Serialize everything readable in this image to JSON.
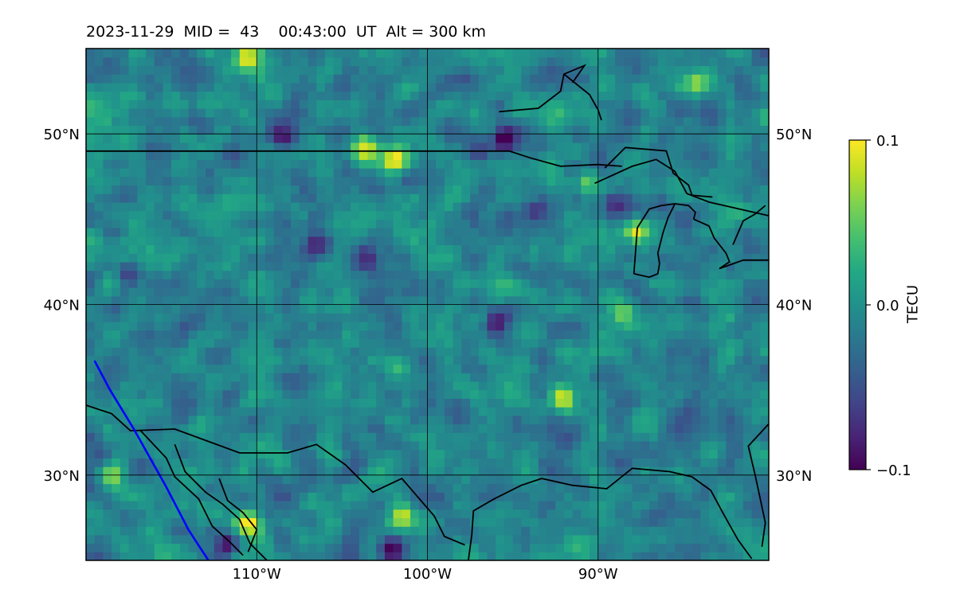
{
  "title": "2023-11-29  MID =  43    00:43:00  UT  Alt = 300 km",
  "chart_data": {
    "type": "heatmap",
    "title": "2023-11-29  MID =  43    00:43:00  UT  Alt = 300 km",
    "xlabel": "",
    "ylabel": "",
    "xlim": [
      -120,
      -80
    ],
    "ylim": [
      25,
      55
    ],
    "x_ticks": [
      -110,
      -100,
      -90
    ],
    "x_tick_labels": [
      "110°W",
      "100°W",
      "90°W"
    ],
    "y_ticks": [
      30,
      40,
      50
    ],
    "y_tick_labels": [
      "30°N",
      "40°N",
      "50°N"
    ],
    "colorbar": {
      "label": "TECU",
      "colormap": "viridis",
      "vmin": -0.1,
      "vmax": 0.1,
      "ticks": [
        0.1,
        0.0,
        -0.1
      ],
      "tick_labels": [
        "0.1",
        "0.0",
        "−0.1"
      ]
    },
    "grid": true,
    "cell_deg": 0.5,
    "field_mean": -0.01,
    "hotspots": [
      {
        "lon": -110.5,
        "lat": 27.2,
        "value": 0.1
      },
      {
        "lon": -103.5,
        "lat": 49.2,
        "value": 0.1
      },
      {
        "lon": -102.0,
        "lat": 48.5,
        "value": 0.1
      },
      {
        "lon": -87.8,
        "lat": 44.3,
        "value": 0.09
      },
      {
        "lon": -84.2,
        "lat": 53.0,
        "value": 0.08
      },
      {
        "lon": -92.0,
        "lat": 34.5,
        "value": 0.08
      },
      {
        "lon": -101.5,
        "lat": 27.5,
        "value": 0.07
      },
      {
        "lon": -101.8,
        "lat": 36.5,
        "value": 0.06
      },
      {
        "lon": -110.5,
        "lat": 54.5,
        "value": 0.08
      },
      {
        "lon": -118.5,
        "lat": 30.0,
        "value": 0.07
      },
      {
        "lon": -88.5,
        "lat": 39.5,
        "value": 0.05
      },
      {
        "lon": -90.5,
        "lat": 47.2,
        "value": 0.06
      }
    ],
    "coldspots": [
      {
        "lon": -111.8,
        "lat": 26.0,
        "value": -0.1
      },
      {
        "lon": -95.5,
        "lat": 49.7,
        "value": -0.1
      },
      {
        "lon": -117.5,
        "lat": 41.8,
        "value": -0.09
      },
      {
        "lon": -96.0,
        "lat": 39.0,
        "value": -0.08
      },
      {
        "lon": -102.0,
        "lat": 25.8,
        "value": -0.08
      },
      {
        "lon": -108.5,
        "lat": 50.0,
        "value": -0.08
      },
      {
        "lon": -89.0,
        "lat": 45.8,
        "value": -0.07
      },
      {
        "lon": -93.8,
        "lat": 45.5,
        "value": -0.07
      },
      {
        "lon": -106.5,
        "lat": 43.5,
        "value": -0.07
      },
      {
        "lon": -103.5,
        "lat": 42.8,
        "value": -0.06
      },
      {
        "lon": -97.0,
        "lat": 49.0,
        "value": -0.07
      }
    ],
    "boundaries": {
      "black": [
        [
          [
            -120,
            48.99
          ],
          [
            -95.2,
            48.99
          ],
          [
            -94.0,
            48.6
          ],
          [
            -92.2,
            48.1
          ],
          [
            -90.0,
            48.2
          ],
          [
            -88.6,
            48.1
          ]
        ],
        [
          [
            -90.2,
            47.1
          ],
          [
            -88.0,
            48.1
          ],
          [
            -86.6,
            48.5
          ],
          [
            -85.5,
            47.8
          ],
          [
            -84.8,
            46.5
          ],
          [
            -83.5,
            46.0
          ],
          [
            -80,
            45.2
          ]
        ],
        [
          [
            -87.9,
            41.8
          ],
          [
            -87.7,
            44.5
          ],
          [
            -87.0,
            45.6
          ],
          [
            -86.3,
            45.8
          ],
          [
            -85.5,
            45.9
          ],
          [
            -84.7,
            45.8
          ],
          [
            -84.3,
            45.4
          ],
          [
            -84.4,
            45.0
          ]
        ],
        [
          [
            -85.5,
            45.9
          ],
          [
            -85.9,
            45.1
          ],
          [
            -86.2,
            44.2
          ],
          [
            -86.5,
            43.0
          ],
          [
            -86.4,
            42.4
          ],
          [
            -86.5,
            41.8
          ],
          [
            -87.0,
            41.6
          ],
          [
            -87.9,
            41.8
          ]
        ],
        [
          [
            -84.4,
            45.0
          ],
          [
            -83.5,
            44.6
          ],
          [
            -83.2,
            43.9
          ],
          [
            -82.5,
            43.0
          ],
          [
            -82.3,
            42.5
          ],
          [
            -82.9,
            42.1
          ],
          [
            -81.5,
            42.6
          ],
          [
            -80,
            42.6
          ]
        ],
        [
          [
            -82.1,
            43.5
          ],
          [
            -81.5,
            44.9
          ],
          [
            -80.8,
            45.3
          ],
          [
            -80.2,
            45.8
          ]
        ],
        [
          [
            -120,
            34.1
          ],
          [
            -118.5,
            33.6
          ],
          [
            -117.4,
            32.6
          ],
          [
            -114.8,
            32.7
          ],
          [
            -111.0,
            31.3
          ],
          [
            -108.2,
            31.3
          ],
          [
            -106.5,
            31.8
          ],
          [
            -104.8,
            30.6
          ],
          [
            -103.2,
            29.0
          ],
          [
            -101.5,
            29.8
          ],
          [
            -99.6,
            27.6
          ],
          [
            -99.0,
            26.4
          ],
          [
            -97.8,
            25.9
          ]
        ],
        [
          [
            -116.8,
            32.6
          ],
          [
            -115.3,
            31.0
          ],
          [
            -114.8,
            29.9
          ],
          [
            -113.4,
            28.6
          ],
          [
            -112.6,
            27.0
          ],
          [
            -111.6,
            26.1
          ],
          [
            -110.8,
            25.3
          ]
        ],
        [
          [
            -114.8,
            31.8
          ],
          [
            -114.2,
            30.2
          ],
          [
            -113.0,
            29.0
          ],
          [
            -112.0,
            28.3
          ],
          [
            -111.0,
            27.4
          ],
          [
            -110.4,
            26.0
          ],
          [
            -109.4,
            25.0
          ]
        ],
        [
          [
            -112.2,
            29.8
          ],
          [
            -111.7,
            28.5
          ],
          [
            -110.8,
            27.8
          ],
          [
            -110.0,
            26.8
          ],
          [
            -110.5,
            25.5
          ]
        ],
        [
          [
            -97.6,
            25.0
          ],
          [
            -97.4,
            26.5
          ],
          [
            -97.3,
            27.9
          ],
          [
            -96.1,
            28.6
          ],
          [
            -94.5,
            29.4
          ],
          [
            -93.3,
            29.8
          ],
          [
            -91.5,
            29.4
          ],
          [
            -89.5,
            29.2
          ],
          [
            -88.0,
            30.4
          ],
          [
            -85.8,
            30.2
          ],
          [
            -84.5,
            29.9
          ],
          [
            -83.4,
            29.1
          ],
          [
            -82.7,
            27.8
          ],
          [
            -81.8,
            26.2
          ],
          [
            -81.0,
            25.1
          ]
        ],
        [
          [
            -80,
            33.0
          ],
          [
            -81.2,
            31.7
          ],
          [
            -80.8,
            30.0
          ],
          [
            -80.2,
            27.2
          ],
          [
            -80.4,
            25.8
          ]
        ],
        [
          [
            -89.6,
            48.0
          ],
          [
            -88.4,
            49.2
          ],
          [
            -86.0,
            49.0
          ],
          [
            -85.6,
            47.7
          ],
          [
            -84.7,
            47.0
          ],
          [
            -84.5,
            46.4
          ],
          [
            -83.3,
            46.3
          ]
        ]
      ],
      "blue": [
        [
          -119.5,
          36.7
        ],
        [
          -118.6,
          35.0
        ],
        [
          -117.2,
          32.7
        ],
        [
          -115.3,
          29.3
        ],
        [
          -114.0,
          26.8
        ],
        [
          -112.7,
          24.8
        ]
      ],
      "islands": [
        [
          [
            -95.8,
            51.3
          ],
          [
            -93.5,
            51.5
          ],
          [
            -92.2,
            52.5
          ],
          [
            -92.0,
            53.5
          ],
          [
            -90.8,
            54.0
          ],
          [
            -91.5,
            53.0
          ]
        ],
        [
          [
            -92.0,
            53.5
          ],
          [
            -90.5,
            52.3
          ],
          [
            -90.0,
            51.4
          ],
          [
            -89.8,
            50.8
          ]
        ]
      ]
    }
  }
}
